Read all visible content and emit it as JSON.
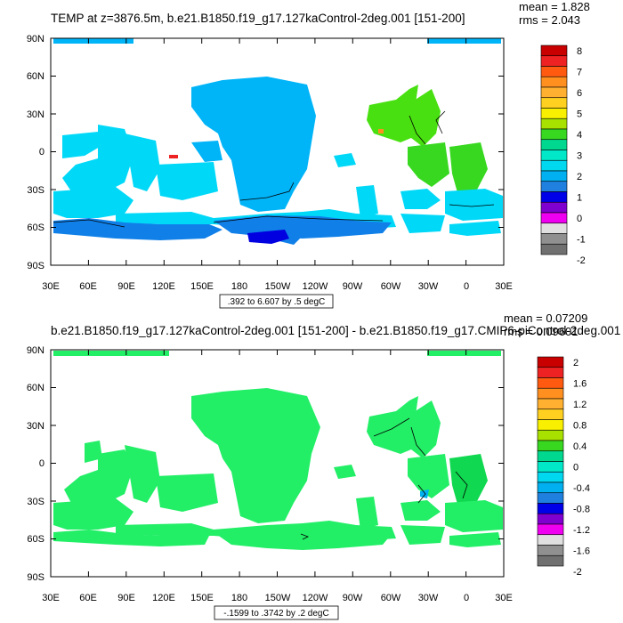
{
  "panels": [
    {
      "title": "TEMP at z=3876.5m, b.e21.B1850.f19_g17.127kaControl-2deg.001 [151-200]",
      "mean": "mean = 1.828",
      "rms": "rms = 2.043",
      "range_info": ".392 to 6.607 by .5 degC",
      "colorbar_labels": [
        "8",
        "7",
        "6",
        "5",
        "4",
        "3",
        "2",
        "1",
        "0",
        "-1",
        "-2"
      ],
      "colorbar_colors": [
        "#c80000",
        "#ee2222",
        "#ff5a10",
        "#ff9020",
        "#ffb030",
        "#ffd020",
        "#f8f000",
        "#a8e000",
        "#38d820",
        "#00d890",
        "#00e8c8",
        "#00d8f0",
        "#00b0f0",
        "#2080e0",
        "#0000e8",
        "#8000d0",
        "#f000f0",
        "#e0e0e0",
        "#909090",
        "#707070"
      ]
    },
    {
      "title": "b.e21.B1850.f19_g17.127kaControl-2deg.001 [151-200] - b.e21.B1850.f19_g17.CMIP6-piControl-2deg.001",
      "mean": "mean = 0.07209",
      "rms": "rms = 0.09601",
      "range_info": "-.1599 to .3742 by .2 degC",
      "colorbar_labels": [
        "2",
        "1.6",
        "1.2",
        "0.8",
        "0.4",
        "0",
        "-0.4",
        "-0.8",
        "-1.2",
        "-1.6",
        "-2"
      ],
      "colorbar_colors": [
        "#c80000",
        "#ee2222",
        "#ff5a10",
        "#ff9020",
        "#ffb030",
        "#ffd020",
        "#f8f000",
        "#a8e000",
        "#38d820",
        "#00d890",
        "#00e8c8",
        "#00d8f0",
        "#00b0f0",
        "#2080e0",
        "#0000e8",
        "#8000d0",
        "#f000f0",
        "#e0e0e0",
        "#909090",
        "#707070"
      ]
    }
  ],
  "axes": {
    "lat_labels": [
      "90N",
      "60N",
      "30N",
      "0",
      "30S",
      "60S",
      "90S"
    ],
    "lon_labels": [
      "30E",
      "60E",
      "90E",
      "120E",
      "150E",
      "180",
      "150W",
      "120W",
      "90W",
      "60W",
      "30W",
      "0",
      "30E"
    ]
  },
  "colors": {
    "panel1_main": "#00b4f8",
    "panel1_light": "#00d8f8",
    "panel1_mid": "#1080e8",
    "panel1_deep": "#0000e0",
    "panel1_green": "#38d820",
    "panel1_lime": "#48e010",
    "panel2_main": "#22ee66",
    "panel2_dark": "#10d850",
    "panel2_blue": "#00b0f0"
  }
}
